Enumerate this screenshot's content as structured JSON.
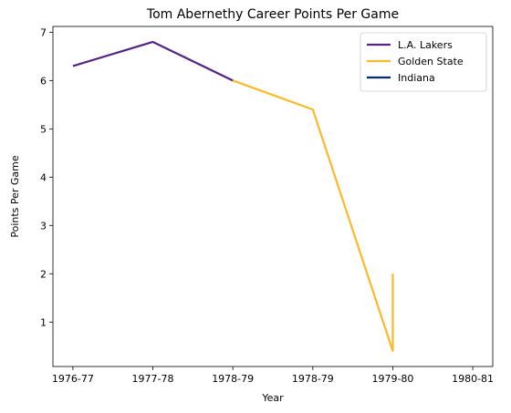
{
  "chart_data": {
    "type": "line",
    "title": "Tom Abernethy Career Points Per Game",
    "xlabel": "Year",
    "ylabel": "Points Per Game",
    "x_ticks": [
      "1976-77",
      "1977-78",
      "1978-79",
      "1978-79",
      "1979-80",
      "1980-81"
    ],
    "xlim": [
      -0.25,
      5.25
    ],
    "ylim": [
      0.08,
      7.12
    ],
    "y_ticks": [
      1,
      2,
      3,
      4,
      5,
      6,
      7
    ],
    "grid": false,
    "legend_position": "top-right",
    "series": [
      {
        "name": "L.A. Lakers",
        "color": "#552583",
        "points": [
          [
            0,
            6.3
          ],
          [
            1.0,
            6.8
          ],
          [
            2.0,
            6.0
          ]
        ]
      },
      {
        "name": "Golden State",
        "color": "#FDB927",
        "points": [
          [
            2.0,
            6.0
          ],
          [
            3.0,
            5.4
          ],
          [
            4.0,
            0.4
          ],
          [
            4.0,
            2.0
          ]
        ]
      },
      {
        "name": "Indiana",
        "color": "#002D62",
        "points": []
      }
    ]
  }
}
